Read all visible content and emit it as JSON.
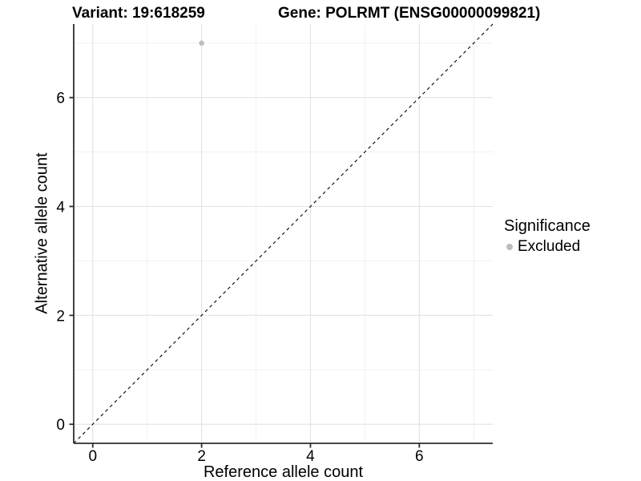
{
  "header": {
    "title_variant": "Variant: 19:618259",
    "title_gene": "Gene: POLRMT (ENSG00000099821)"
  },
  "chart_data": {
    "type": "scatter",
    "title_left": "Variant: 19:618259",
    "title_right": "Gene: POLRMT (ENSG00000099821)",
    "xlabel": "Reference allele count",
    "ylabel": "Alternative allele count",
    "xlim": [
      -0.35,
      7.35
    ],
    "ylim": [
      -0.35,
      7.35
    ],
    "x_ticks": [
      0,
      2,
      4,
      6
    ],
    "y_ticks": [
      0,
      2,
      4,
      6
    ],
    "x_minor_ticks": [
      1,
      3,
      5,
      7
    ],
    "y_minor_ticks": [
      1,
      3,
      5,
      7
    ],
    "grid": true,
    "points": [
      {
        "x": 2,
        "y": 7,
        "series": "Excluded",
        "color": "#bebebe"
      }
    ],
    "reference_line": {
      "kind": "identity",
      "from": [
        -0.35,
        -0.35
      ],
      "to": [
        7.35,
        7.35
      ],
      "style": "dashed",
      "color": "#000000"
    },
    "legend": {
      "title": "Significance",
      "position": "right",
      "items": [
        {
          "label": "Excluded",
          "color": "#bebebe"
        }
      ]
    }
  },
  "colors": {
    "background": "#ffffff",
    "grid_major": "#e4e4e4",
    "grid_minor": "#f1f1f1",
    "axis_line": "#2e2e2e",
    "tick_text": "#000000",
    "point": "#bebebe",
    "reference_line": "#000000"
  }
}
